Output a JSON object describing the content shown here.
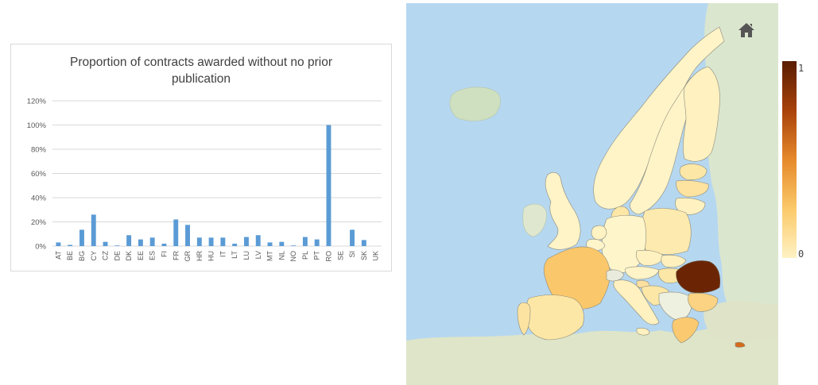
{
  "chart_data": [
    {
      "type": "bar",
      "title_lines": [
        "Proportion of contracts awarded without no prior",
        "publication"
      ],
      "categories": [
        "AT",
        "BE",
        "BG",
        "CY",
        "CZ",
        "DE",
        "DK",
        "EE",
        "ES",
        "FI",
        "FR",
        "GR",
        "HR",
        "HU",
        "IT",
        "LT",
        "LU",
        "LV",
        "MT",
        "NL",
        "NO",
        "PL",
        "PT",
        "RO",
        "SE",
        "SI",
        "SK",
        "UK"
      ],
      "values": [
        3,
        1,
        13.5,
        26,
        3.5,
        0.5,
        9,
        5.5,
        7,
        2,
        22,
        17.5,
        7,
        7,
        7,
        2,
        7.5,
        9,
        3,
        3.5,
        0.5,
        7.5,
        5.5,
        100,
        0,
        13.5,
        5,
        0
      ],
      "yticks": [
        "0%",
        "20%",
        "40%",
        "60%",
        "80%",
        "100%",
        "120%"
      ],
      "ylim": [
        0,
        120
      ],
      "color": "#5b9bd5",
      "grid": true
    },
    {
      "type": "choropleth",
      "colorscale": [
        "#fff2c4",
        "#fbc969",
        "#e6892a",
        "#a8420a",
        "#5a1d02"
      ],
      "colorbar_ticks": [
        "1",
        "0"
      ],
      "range": [
        0,
        1
      ]
    }
  ],
  "map": {
    "home_icon": "home-icon",
    "sea_color": "#b6d7f0",
    "land_color": "#d9e4cc"
  }
}
